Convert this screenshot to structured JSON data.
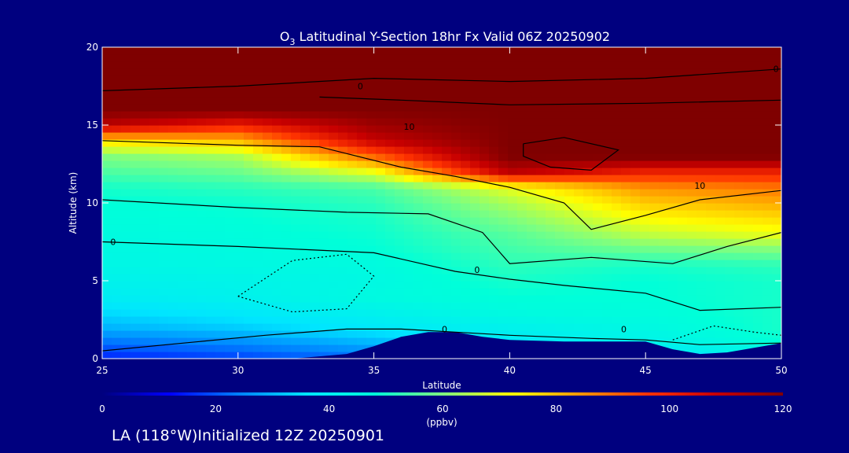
{
  "chart_data": {
    "type": "heatmap",
    "title_prefix": "O",
    "title_sub": "3",
    "title_rest": " Latitudinal Y-Section 18hr  Fx Valid 06Z 20250902",
    "xlabel": "Latitude",
    "ylabel": "Altitude (km)",
    "xlim": [
      25,
      50
    ],
    "ylim": [
      0,
      20
    ],
    "x_ticks": [
      25,
      30,
      35,
      40,
      45,
      50
    ],
    "y_ticks": [
      0,
      5,
      10,
      15,
      20
    ],
    "colorbar": {
      "label": "(ppbv)",
      "range": [
        0,
        120
      ],
      "ticks": [
        0,
        20,
        40,
        60,
        80,
        100,
        120
      ],
      "colors": [
        "#00007f",
        "#0000ff",
        "#0080ff",
        "#00e5ff",
        "#00ffd9",
        "#7fff7f",
        "#ffff00",
        "#ff9900",
        "#ff3300",
        "#c80000",
        "#7f0000"
      ]
    },
    "color_stops": [
      0,
      12,
      24,
      36,
      48,
      60,
      72,
      84,
      96,
      108,
      120
    ],
    "grid": {
      "lats": [
        25,
        30,
        35,
        40,
        45,
        50
      ],
      "alts": [
        0,
        1,
        2,
        3,
        4,
        5,
        6,
        7,
        8,
        9,
        10,
        11,
        12,
        13,
        14,
        15,
        16,
        17,
        18,
        19,
        20
      ],
      "values": [
        [
          15,
          18,
          22,
          30,
          35,
          40
        ],
        [
          22,
          25,
          30,
          38,
          42,
          48
        ],
        [
          30,
          33,
          38,
          42,
          45,
          50
        ],
        [
          35,
          38,
          42,
          46,
          47,
          50
        ],
        [
          40,
          42,
          46,
          48,
          48,
          50
        ],
        [
          42,
          43,
          45,
          50,
          48,
          50
        ],
        [
          44,
          45,
          46,
          52,
          50,
          52
        ],
        [
          45,
          46,
          48,
          54,
          58,
          60
        ],
        [
          46,
          47,
          49,
          56,
          66,
          70
        ],
        [
          47,
          48,
          50,
          60,
          72,
          76
        ],
        [
          48,
          49,
          52,
          64,
          78,
          82
        ],
        [
          50,
          52,
          55,
          70,
          85,
          88
        ],
        [
          55,
          58,
          70,
          110,
          100,
          100
        ],
        [
          60,
          64,
          90,
          120,
          120,
          120
        ],
        [
          75,
          80,
          108,
          120,
          120,
          120
        ],
        [
          110,
          100,
          115,
          120,
          120,
          120
        ],
        [
          120,
          120,
          120,
          120,
          120,
          120
        ],
        [
          120,
          120,
          120,
          120,
          120,
          120
        ],
        [
          120,
          120,
          120,
          120,
          120,
          120
        ],
        [
          120,
          120,
          120,
          120,
          120,
          120
        ],
        [
          120,
          120,
          120,
          120,
          120,
          120
        ]
      ]
    },
    "terrain": {
      "lats": [
        25,
        32,
        34,
        35,
        36,
        37,
        38,
        39,
        40,
        42,
        44,
        45,
        46,
        47,
        48,
        50
      ],
      "alts": [
        0,
        0,
        0.3,
        0.8,
        1.4,
        1.7,
        1.7,
        1.4,
        1.2,
        1.1,
        1.1,
        1.1,
        0.6,
        0.3,
        0.4,
        1.0
      ]
    },
    "contours": [
      {
        "style": "solid",
        "points": [
          [
            25,
            17.2
          ],
          [
            30,
            17.5
          ],
          [
            35,
            18.0
          ],
          [
            40,
            17.8
          ],
          [
            45,
            18.0
          ],
          [
            50,
            18.6
          ]
        ]
      },
      {
        "style": "solid",
        "points": [
          [
            33,
            16.8
          ],
          [
            36,
            16.6
          ],
          [
            40,
            16.3
          ],
          [
            45,
            16.4
          ],
          [
            50,
            16.6
          ]
        ]
      },
      {
        "style": "solid",
        "points": [
          [
            40.5,
            13.8
          ],
          [
            42,
            14.2
          ],
          [
            44,
            13.4
          ],
          [
            43,
            12.1
          ],
          [
            41.5,
            12.3
          ],
          [
            40.5,
            13.0
          ],
          [
            40.5,
            13.8
          ]
        ]
      },
      {
        "style": "solid",
        "points": [
          [
            25,
            14.0
          ],
          [
            30,
            13.7
          ],
          [
            33,
            13.6
          ],
          [
            36,
            12.3
          ],
          [
            38,
            11.7
          ],
          [
            40,
            11.0
          ],
          [
            42,
            10.0
          ],
          [
            43,
            8.3
          ],
          [
            45,
            9.2
          ],
          [
            47,
            10.2
          ],
          [
            50,
            10.8
          ]
        ]
      },
      {
        "style": "solid",
        "points": [
          [
            25,
            10.2
          ],
          [
            30,
            9.7
          ],
          [
            34,
            9.4
          ],
          [
            37,
            9.3
          ],
          [
            39,
            8.1
          ],
          [
            40,
            6.1
          ],
          [
            43,
            6.5
          ],
          [
            46,
            6.1
          ],
          [
            48,
            7.2
          ],
          [
            50,
            8.1
          ]
        ]
      },
      {
        "style": "solid",
        "points": [
          [
            25,
            7.5
          ],
          [
            30,
            7.2
          ],
          [
            35,
            6.8
          ],
          [
            38,
            5.6
          ],
          [
            40,
            5.1
          ],
          [
            42,
            4.7
          ],
          [
            45,
            4.2
          ],
          [
            47,
            3.1
          ],
          [
            50,
            3.3
          ]
        ]
      },
      {
        "style": "solid",
        "points": [
          [
            25,
            0.5
          ],
          [
            28,
            1.0
          ],
          [
            31,
            1.5
          ],
          [
            34,
            1.9
          ],
          [
            36,
            1.9
          ],
          [
            38,
            1.7
          ],
          [
            40,
            1.5
          ],
          [
            43,
            1.3
          ],
          [
            45,
            1.2
          ],
          [
            47,
            0.9
          ],
          [
            50,
            1.0
          ]
        ]
      },
      {
        "style": "dotted",
        "points": [
          [
            30,
            4.0
          ],
          [
            32,
            6.3
          ],
          [
            34,
            6.7
          ],
          [
            35,
            5.3
          ],
          [
            34,
            3.2
          ],
          [
            32,
            3.0
          ],
          [
            30,
            4.0
          ]
        ]
      },
      {
        "style": "dotted",
        "points": [
          [
            46,
            1.2
          ],
          [
            47.5,
            2.1
          ],
          [
            49,
            1.7
          ],
          [
            50,
            1.5
          ]
        ]
      }
    ],
    "contour_labels": [
      {
        "text": "0",
        "lat": 34.5,
        "alt": 17.5
      },
      {
        "text": "0",
        "lat": 49.8,
        "alt": 18.6
      },
      {
        "text": "10",
        "lat": 36.3,
        "alt": 14.9
      },
      {
        "text": "10",
        "lat": 47,
        "alt": 11.1
      },
      {
        "text": "0",
        "lat": 25.4,
        "alt": 7.5
      },
      {
        "text": "0",
        "lat": 38.8,
        "alt": 5.7
      },
      {
        "text": "0",
        "lat": 37.6,
        "alt": 1.9
      },
      {
        "text": "0",
        "lat": 44.2,
        "alt": 1.9
      }
    ]
  },
  "footer": {
    "text": "LA (118°W)Initialized 12Z 20250901"
  }
}
